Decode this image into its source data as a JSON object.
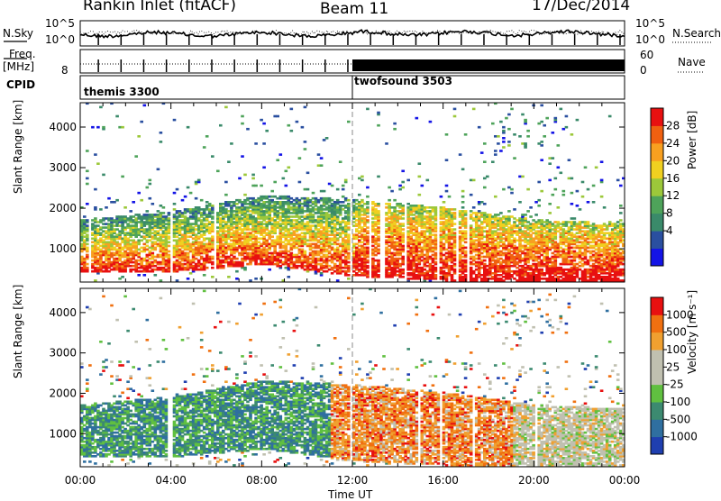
{
  "header": {
    "radar": "Rankin Inlet (fitACF)",
    "beam": "Beam 11",
    "date": "17/Dec/2014"
  },
  "params": {
    "nsky_label": "N.Sky",
    "freq_label_1": "Freq.",
    "freq_label_2": "[MHz]",
    "cpid_label": "CPID",
    "nsearch_label": "N.Search",
    "nave_label": "Nave",
    "noise_ticks_left": [
      "10^5",
      "10^0"
    ],
    "noise_ticks_right": [
      "10^5",
      "10^0"
    ],
    "freq_ticks_left": [
      "8"
    ],
    "nave_ticks_right": [
      "60",
      "0"
    ],
    "cpid_modes": [
      "themis 3300",
      "twofsound 3503"
    ]
  },
  "panels": {
    "power": {
      "ylabel": "Slant Range [km]",
      "cbar_label": "Power [dB]",
      "cbar_ticks": [
        "28",
        "24",
        "20",
        "16",
        "12",
        "8",
        "4"
      ]
    },
    "velocity": {
      "ylabel": "Slant Range [km]",
      "cbar_label": "Velocity [m s⁻¹]",
      "cbar_ticks": [
        "1000",
        "500",
        "100",
        "25",
        "-25",
        "-100",
        "-500",
        "-1000"
      ]
    }
  },
  "colors": {
    "power_scale": [
      "#1414e6",
      "#2a4fa0",
      "#3a8a6a",
      "#4ea35a",
      "#9cc83a",
      "#f0d020",
      "#f8a020",
      "#f06010",
      "#e81010"
    ],
    "velocity_scale": [
      "#1f3fb0",
      "#2f6fa0",
      "#3c8a70",
      "#60c040",
      "#c0c0b0",
      "#c0c0b0",
      "#f0a030",
      "#f07010",
      "#e81010"
    ]
  },
  "chart_data": [
    {
      "type": "heatmap",
      "title": "Power",
      "xlabel": "Time UT",
      "ylabel": "Slant Range [km]",
      "x_ticks": [
        "00:00",
        "04:00",
        "08:00",
        "12:00",
        "16:00",
        "20:00",
        "00:00"
      ],
      "y_ticks": [
        1000,
        2000,
        3000,
        4000
      ],
      "xlim_hours": [
        0,
        24
      ],
      "ylim_km": [
        180,
        4600
      ],
      "colorbar": {
        "label": "Power [dB]",
        "ticks": [
          4,
          8,
          12,
          16,
          20,
          24,
          28
        ]
      },
      "main_echo_band_km": [
        [
          0,
          700,
          1700
        ],
        [
          4,
          700,
          1900
        ],
        [
          8,
          900,
          2300
        ],
        [
          12,
          600,
          2200
        ],
        [
          16,
          500,
          2000
        ],
        [
          20,
          500,
          1700
        ],
        [
          24,
          500,
          1600
        ]
      ]
    },
    {
      "type": "heatmap",
      "title": "Velocity",
      "xlabel": "Time UT",
      "ylabel": "Slant Range [km]",
      "x_ticks": [
        "00:00",
        "04:00",
        "08:00",
        "12:00",
        "16:00",
        "20:00",
        "00:00"
      ],
      "y_ticks": [
        1000,
        2000,
        3000,
        4000
      ],
      "xlim_hours": [
        0,
        24
      ],
      "ylim_km": [
        180,
        4600
      ],
      "colorbar": {
        "label": "Velocity [m s⁻¹]",
        "ticks": [
          -1000,
          -500,
          -100,
          -25,
          25,
          100,
          500,
          1000
        ]
      }
    }
  ],
  "time_axis": {
    "label": "Time UT",
    "ticks": [
      "00:00",
      "04:00",
      "08:00",
      "12:00",
      "16:00",
      "20:00",
      "00:00"
    ]
  }
}
